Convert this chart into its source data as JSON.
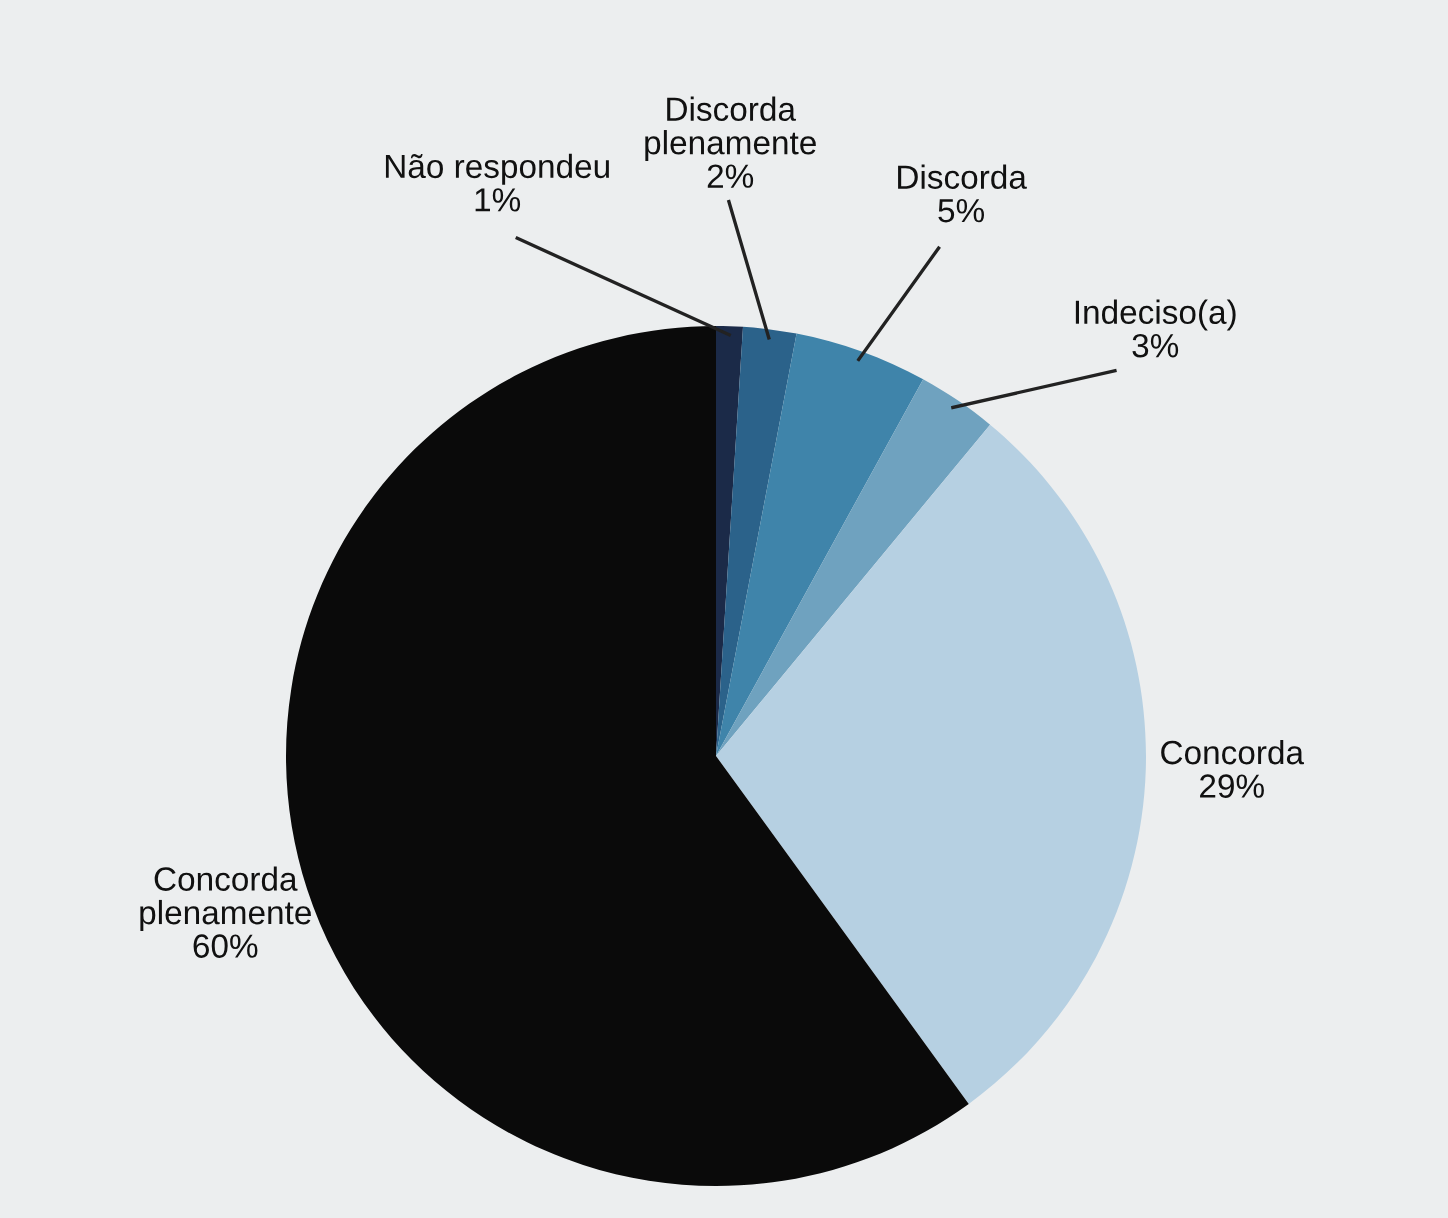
{
  "chart_data": {
    "type": "pie",
    "categories": [
      "Não respondeu",
      "Discorda\nplenamente",
      "Discorda",
      "Indeciso(a)",
      "Concorda",
      "Concorda\nplenamente"
    ],
    "values": [
      1,
      2,
      5,
      3,
      29,
      60
    ],
    "value_labels": [
      "1%",
      "2%",
      "5%",
      "3%",
      "29%",
      "60%"
    ],
    "colors": [
      "#1b2a48",
      "#2b628a",
      "#3f84aa",
      "#6fa2bf",
      "#b6d0e2",
      "#0a0a0a"
    ]
  }
}
